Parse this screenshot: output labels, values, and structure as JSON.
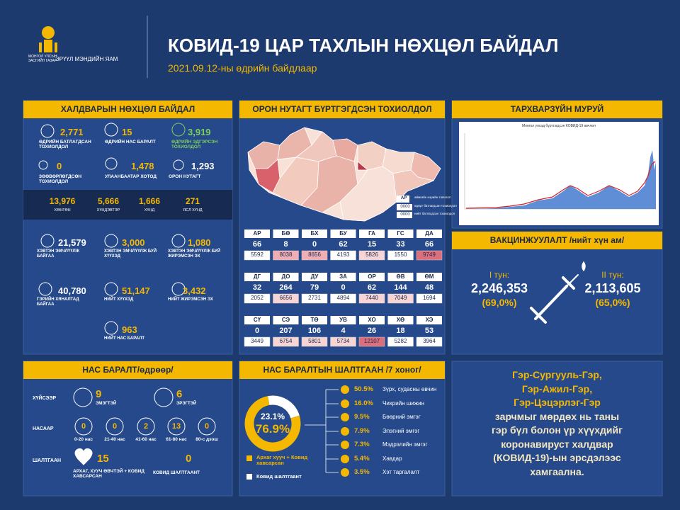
{
  "header": {
    "logo_top": "МОНГОЛ УЛСЫН ЗАСГИЙН ГАЗАР",
    "logo_bottom": "ЭРҮҮЛ МЭНДИЙН ЯАМ",
    "title": "КОВИД-19 ЦАР ТАХЛЫН НӨХЦӨЛ БАЙДАЛ",
    "subtitle": "2021.09.12-ны өдрийн байдлаар"
  },
  "infection": {
    "title": "ХАЛДВАРЫН НӨХЦӨЛ БАЙДАЛ",
    "stats": [
      {
        "value": "2,771",
        "label": "ӨДРИЙН БАТЛАГДСАН ТОХИОЛДОЛ"
      },
      {
        "value": "15",
        "label": "ӨДРИЙН НАС БАРАЛТ"
      },
      {
        "value": "3,919",
        "label": "ӨДРИЙН ЭДГЭРСЭН ТОХИОЛДОЛ"
      },
      {
        "value": "0",
        "label": "ЗӨӨВӨРЛӨГДСӨН ТОХИОЛДОЛ"
      },
      {
        "value": "1,478",
        "label": "УЛААНБААТАР ХОТОД"
      },
      {
        "value": "1,293",
        "label": "ОРОН НУТАГТ"
      }
    ],
    "severity": [
      {
        "value": "13,976",
        "label": "ХӨНГӨН"
      },
      {
        "value": "5,666",
        "label": "ХҮНДЭВТЭР"
      },
      {
        "value": "1,666",
        "label": "ХҮНД"
      },
      {
        "value": "271",
        "label": "ЯСЛ ХҮНД"
      }
    ],
    "care": [
      {
        "value": "21,579",
        "label": "ХЭВТЭН ЭМЧЛҮҮЛЖ БАЙГАА"
      },
      {
        "value": "3,000",
        "label": "ХЭВТЭН ЭМЧЛҮҮЛЖ БУЙ ХҮҮХЭД"
      },
      {
        "value": "1,080",
        "label": "ХЭВТЭН ЭМЧЛҮҮЛЖ БУЙ ЖИРЭМСЭН ЭХ"
      },
      {
        "value": "40,780",
        "label": "ГЭРИЙН ХЯНАЛТАД БАЙГАА"
      },
      {
        "value": "51,147",
        "label": "НИЙТ ХҮҮХЭД"
      },
      {
        "value": "3,432",
        "label": "НИЙТ ЖИРЭМСЭН ЭХ"
      },
      {
        "value": "963",
        "label": "НИЙТ НАС БАРАЛТ"
      }
    ]
  },
  "regional": {
    "title": "ОРОН НУТАГТ БҮРТГЭГДСЭН ТОХИОЛДОЛ",
    "legend": {
      "code": "АР",
      "code_label": "аймгийн нэрийн товчлол",
      "daily": "0000",
      "daily_label": "өдөрт батлагдсан тохиолдол",
      "total": "0000",
      "total_label": "нийт батлагдсан тохиолдол"
    },
    "rows": [
      [
        {
          "code": "АР",
          "daily": 66,
          "total": 5592
        },
        {
          "code": "БӨ",
          "daily": 8,
          "total": 8038
        },
        {
          "code": "БХ",
          "daily": 0,
          "total": 8656
        },
        {
          "code": "БУ",
          "daily": 62,
          "total": 4193
        },
        {
          "code": "ГА",
          "daily": 15,
          "total": 5826
        },
        {
          "code": "ГС",
          "daily": 33,
          "total": 1550
        },
        {
          "code": "ДА",
          "daily": 66,
          "total": 9749
        }
      ],
      [
        {
          "code": "ДГ",
          "daily": 32,
          "total": 2052
        },
        {
          "code": "ДО",
          "daily": 264,
          "total": 6656
        },
        {
          "code": "ДУ",
          "daily": 79,
          "total": 2731
        },
        {
          "code": "ЗА",
          "daily": 0,
          "total": 4894
        },
        {
          "code": "ОР",
          "daily": 62,
          "total": 7440
        },
        {
          "code": "ӨВ",
          "daily": 144,
          "total": 7049
        },
        {
          "code": "ӨМ",
          "daily": 48,
          "total": 1694
        }
      ],
      [
        {
          "code": "СҮ",
          "daily": 0,
          "total": 3449
        },
        {
          "code": "СЭ",
          "daily": 207,
          "total": 6754
        },
        {
          "code": "ТӨ",
          "daily": 106,
          "total": 5801
        },
        {
          "code": "УВ",
          "daily": 4,
          "total": 5734
        },
        {
          "code": "ХО",
          "daily": 26,
          "total": 12107
        },
        {
          "code": "ХӨ",
          "daily": 18,
          "total": 5282
        },
        {
          "code": "ХЭ",
          "daily": 53,
          "total": 3964
        }
      ]
    ]
  },
  "epi": {
    "title": "ТАРХВАРЗҮЙН МУРУЙ",
    "chart_title": "Монгол улсад бүртгэгдсэн КОВИД-19 өвчлөл"
  },
  "vaccination": {
    "title": "ВАКЦИНЖУУЛАЛТ /нийт хүн ам/",
    "doses": [
      {
        "label": "I тун:",
        "value": "2,246,353",
        "percent": "(69,0%)"
      },
      {
        "label": "II тун:",
        "value": "2,113,605",
        "percent": "(65,0%)"
      }
    ]
  },
  "deaths": {
    "title": "НАС БАРАЛТ/өдрөөр/",
    "sex": {
      "label": "ХҮЙСЭЭР",
      "items": [
        {
          "value": 9,
          "label": "ЭМЭГТЭЙ"
        },
        {
          "value": 6,
          "label": "ЭРЭГТЭЙ"
        }
      ]
    },
    "age": {
      "label": "НАСААР",
      "items": [
        {
          "value": 0,
          "label": "0-20 нас"
        },
        {
          "value": 0,
          "label": "21-40 нас"
        },
        {
          "value": 2,
          "label": "41-60 нас"
        },
        {
          "value": 13,
          "label": "61-80 нас"
        },
        {
          "value": 0,
          "label": "80-с дээш"
        }
      ]
    },
    "cause": {
      "label": "ШАЛТГААН",
      "items": [
        {
          "value": 15,
          "label": "АРХАГ, ХУУЧ ӨВЧТЭЙ + КОВИД ХАВСАРСАН"
        },
        {
          "value": 0,
          "label": "КОВИД ШАЛТГААНТ"
        }
      ]
    }
  },
  "causes": {
    "title": "НАС БАРАЛТЫН ШАЛТГААН /7 хоног/",
    "donut": {
      "values": [
        76.9,
        23.1
      ],
      "value_labels": [
        "76.9%",
        "23.1%"
      ],
      "colors": [
        "#f5b800",
        "#ffffff"
      ],
      "legend": [
        "Архаг хууч + Ковид хавсарсан",
        "Ковид шалтгаант"
      ]
    },
    "items": [
      {
        "value": "50.5%",
        "label": "Зүрх, судасны өвчин"
      },
      {
        "value": "16.0%",
        "label": "Чихрийн шижин"
      },
      {
        "value": "9.5%",
        "label": "Бөөрний эмгэг"
      },
      {
        "value": "7.9%",
        "label": "Элэгний эмгэг"
      },
      {
        "value": "7.3%",
        "label": "Мэдрэлийн эмгэг"
      },
      {
        "value": "5.4%",
        "label": "Хавдар"
      },
      {
        "value": "3.5%",
        "label": "Хэт таргалалт"
      }
    ]
  },
  "message": {
    "lines": [
      "Гэр-Сургууль-Гэр,",
      "Гэр-Ажил-Гэр,",
      "Гэр-Цэцэрлэг-Гэр",
      "зарчмыг мөрдөх нь таны",
      "гэр бүл болон үр хүүхдийг",
      "коронавируст халдвар",
      "(КОВИД-19)-ын эрсдэлээс",
      "хамгаална."
    ]
  }
}
